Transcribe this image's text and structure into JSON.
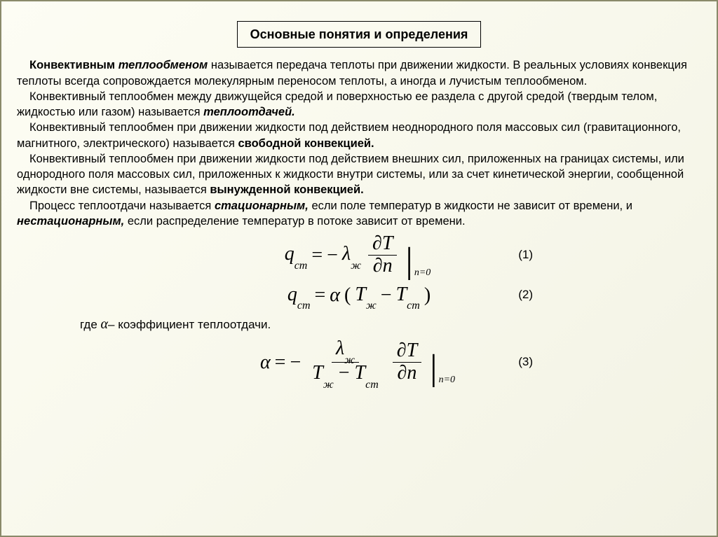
{
  "title": "Основные понятия и определения",
  "para1_lead_bold": "Конвективным",
  "para1_lead_italic": "теплообменом",
  "para1_rest": " называется передача теплоты при движении жидкости. В реальных условиях конвекция теплоты всегда сопровождается молекулярным переносом теплоты, а иногда и лучистым теплообменом.",
  "para2_pre": "Конвективный теплообмен между движущейся средой и поверхностью ее раздела с другой средой (твердым телом, жидкостью или газом) называется ",
  "para2_term": "теплоотдачей.",
  "para3_pre": "Конвективный теплообмен при движении жидкости под действием неоднородного поля массовых сил (гравитационного, магнитного, электрического) называется ",
  "para3_term": "свободной конвекцией.",
  "para4_pre": "Конвективный теплообмен при движении жидкости под действием внешних сил, приложенных на границах системы, или однородного поля массовых сил, приложенных к жидкости внутри системы, или за счет кинетической энергии, сообщенной жидкости вне системы, называется ",
  "para4_term": "вынужденной конвекцией.",
  "para5_a": "Процесс теплоотдачи называется ",
  "para5_t1": "стационарным,",
  "para5_b": " если поле температур в жидкости не зависит от времени, и ",
  "para5_t2": "нестационарным,",
  "para5_c": " если распределение температур в потоке зависит от времени.",
  "eq1_num": "(1)",
  "eq2_num": "(2)",
  "eq3_num": "(3)",
  "where_text": "– коэффициент теплоотдачи.",
  "where_prefix": "где  ",
  "sym": {
    "q": "q",
    "cm": "ст",
    "equals": "=",
    "minus": "−",
    "lambda": "λ",
    "zh": "ж",
    "dT": "∂T",
    "dn": "∂n",
    "n0": "n=0",
    "alpha": "α",
    "lpar": "(",
    "rpar": ")",
    "T": "T"
  }
}
